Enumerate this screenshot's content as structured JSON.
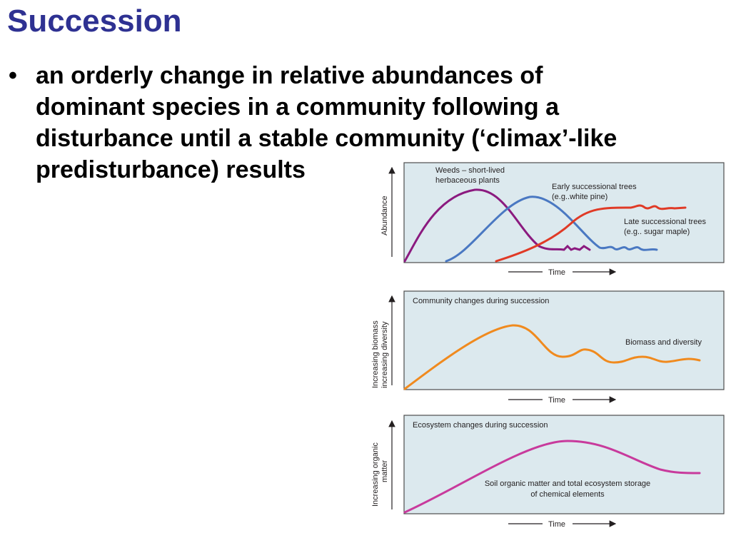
{
  "slide": {
    "title": "Succession",
    "bullet": "an orderly change in relative abundances of dominant species in a community following a disturbance until a stable community (‘climax’-like predisturbance) results"
  },
  "colors": {
    "title": "#2e3192",
    "panel_bg": "#dce9ee",
    "weeds": "#8b1a7f",
    "early_trees": "#4a78c2",
    "late_trees": "#e03a26",
    "biomass": "#f08a1e",
    "soil": "#c83a9c"
  },
  "panels": [
    {
      "y_axis_label": "Abundance",
      "x_axis_label": "Time",
      "annotations": [
        "Weeds – short-lived",
        "herbaceous plants",
        "Early successional trees",
        "(e.g..white pine)",
        "Late successional trees",
        "(e.g.. sugar maple)"
      ]
    },
    {
      "title": "Community changes during succession",
      "y_axis_label": [
        "Increasing biomass",
        "increasing diversity"
      ],
      "x_axis_label": "Time",
      "annotations": [
        "Biomass and diversity"
      ]
    },
    {
      "title": "Ecosystem changes during succession",
      "y_axis_label": [
        "Increasing organic",
        "matter"
      ],
      "x_axis_label": "Time",
      "annotations": [
        "Soil organic matter and total ecosystem storage",
        "of chemical elements"
      ]
    }
  ]
}
